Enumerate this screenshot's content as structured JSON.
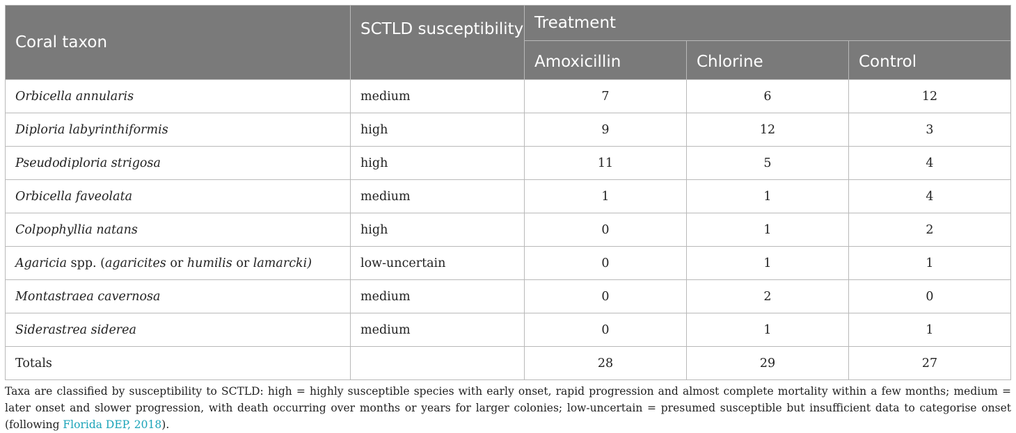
{
  "table": {
    "headers": {
      "taxon": "Coral taxon",
      "susceptibility": "SCTLD susceptibility",
      "treatment": "Treatment",
      "amoxicillin": "Amoxicillin",
      "chlorine": "Chlorine",
      "control": "Control"
    },
    "rows": [
      {
        "taxon": "Orbicella annularis",
        "susceptibility": "medium",
        "amoxicillin": "7",
        "chlorine": "6",
        "control": "12"
      },
      {
        "taxon": "Diploria labyrinthiformis",
        "susceptibility": "high",
        "amoxicillin": "9",
        "chlorine": "12",
        "control": "3"
      },
      {
        "taxon": "Pseudodiploria strigosa",
        "susceptibility": "high",
        "amoxicillin": "11",
        "chlorine": "5",
        "control": "4"
      },
      {
        "taxon": "Orbicella faveolata",
        "susceptibility": "medium",
        "amoxicillin": "1",
        "chlorine": "1",
        "control": "4"
      },
      {
        "taxon": "Colpophyllia natans",
        "susceptibility": "high",
        "amoxicillin": "0",
        "chlorine": "1",
        "control": "2"
      },
      {
        "taxon_parts": [
          "Agaricia",
          " spp. (",
          "agaricites",
          " or ",
          "humilis",
          " or ",
          "lamarcki)"
        ],
        "susceptibility": "low-uncertain",
        "amoxicillin": "0",
        "chlorine": "1",
        "control": "1"
      },
      {
        "taxon": "Montastraea cavernosa",
        "susceptibility": "medium",
        "amoxicillin": "0",
        "chlorine": "2",
        "control": "0"
      },
      {
        "taxon": "Siderastrea siderea",
        "susceptibility": "medium",
        "amoxicillin": "0",
        "chlorine": "1",
        "control": "1"
      }
    ],
    "totals": {
      "label": "Totals",
      "susceptibility": "",
      "amoxicillin": "28",
      "chlorine": "29",
      "control": "27"
    }
  },
  "footnote": {
    "text": "Taxa are classified by susceptibility to SCTLD: high = highly susceptible species with early onset, rapid progression and almost complete mortality within a few months; medium = later onset and slower progression, with death occurring over months or years for larger colonies; low-uncertain = presumed susceptible but insufficient data to categorise onset (following ",
    "citation": "Florida DEP, 2018",
    "end": ")."
  }
}
